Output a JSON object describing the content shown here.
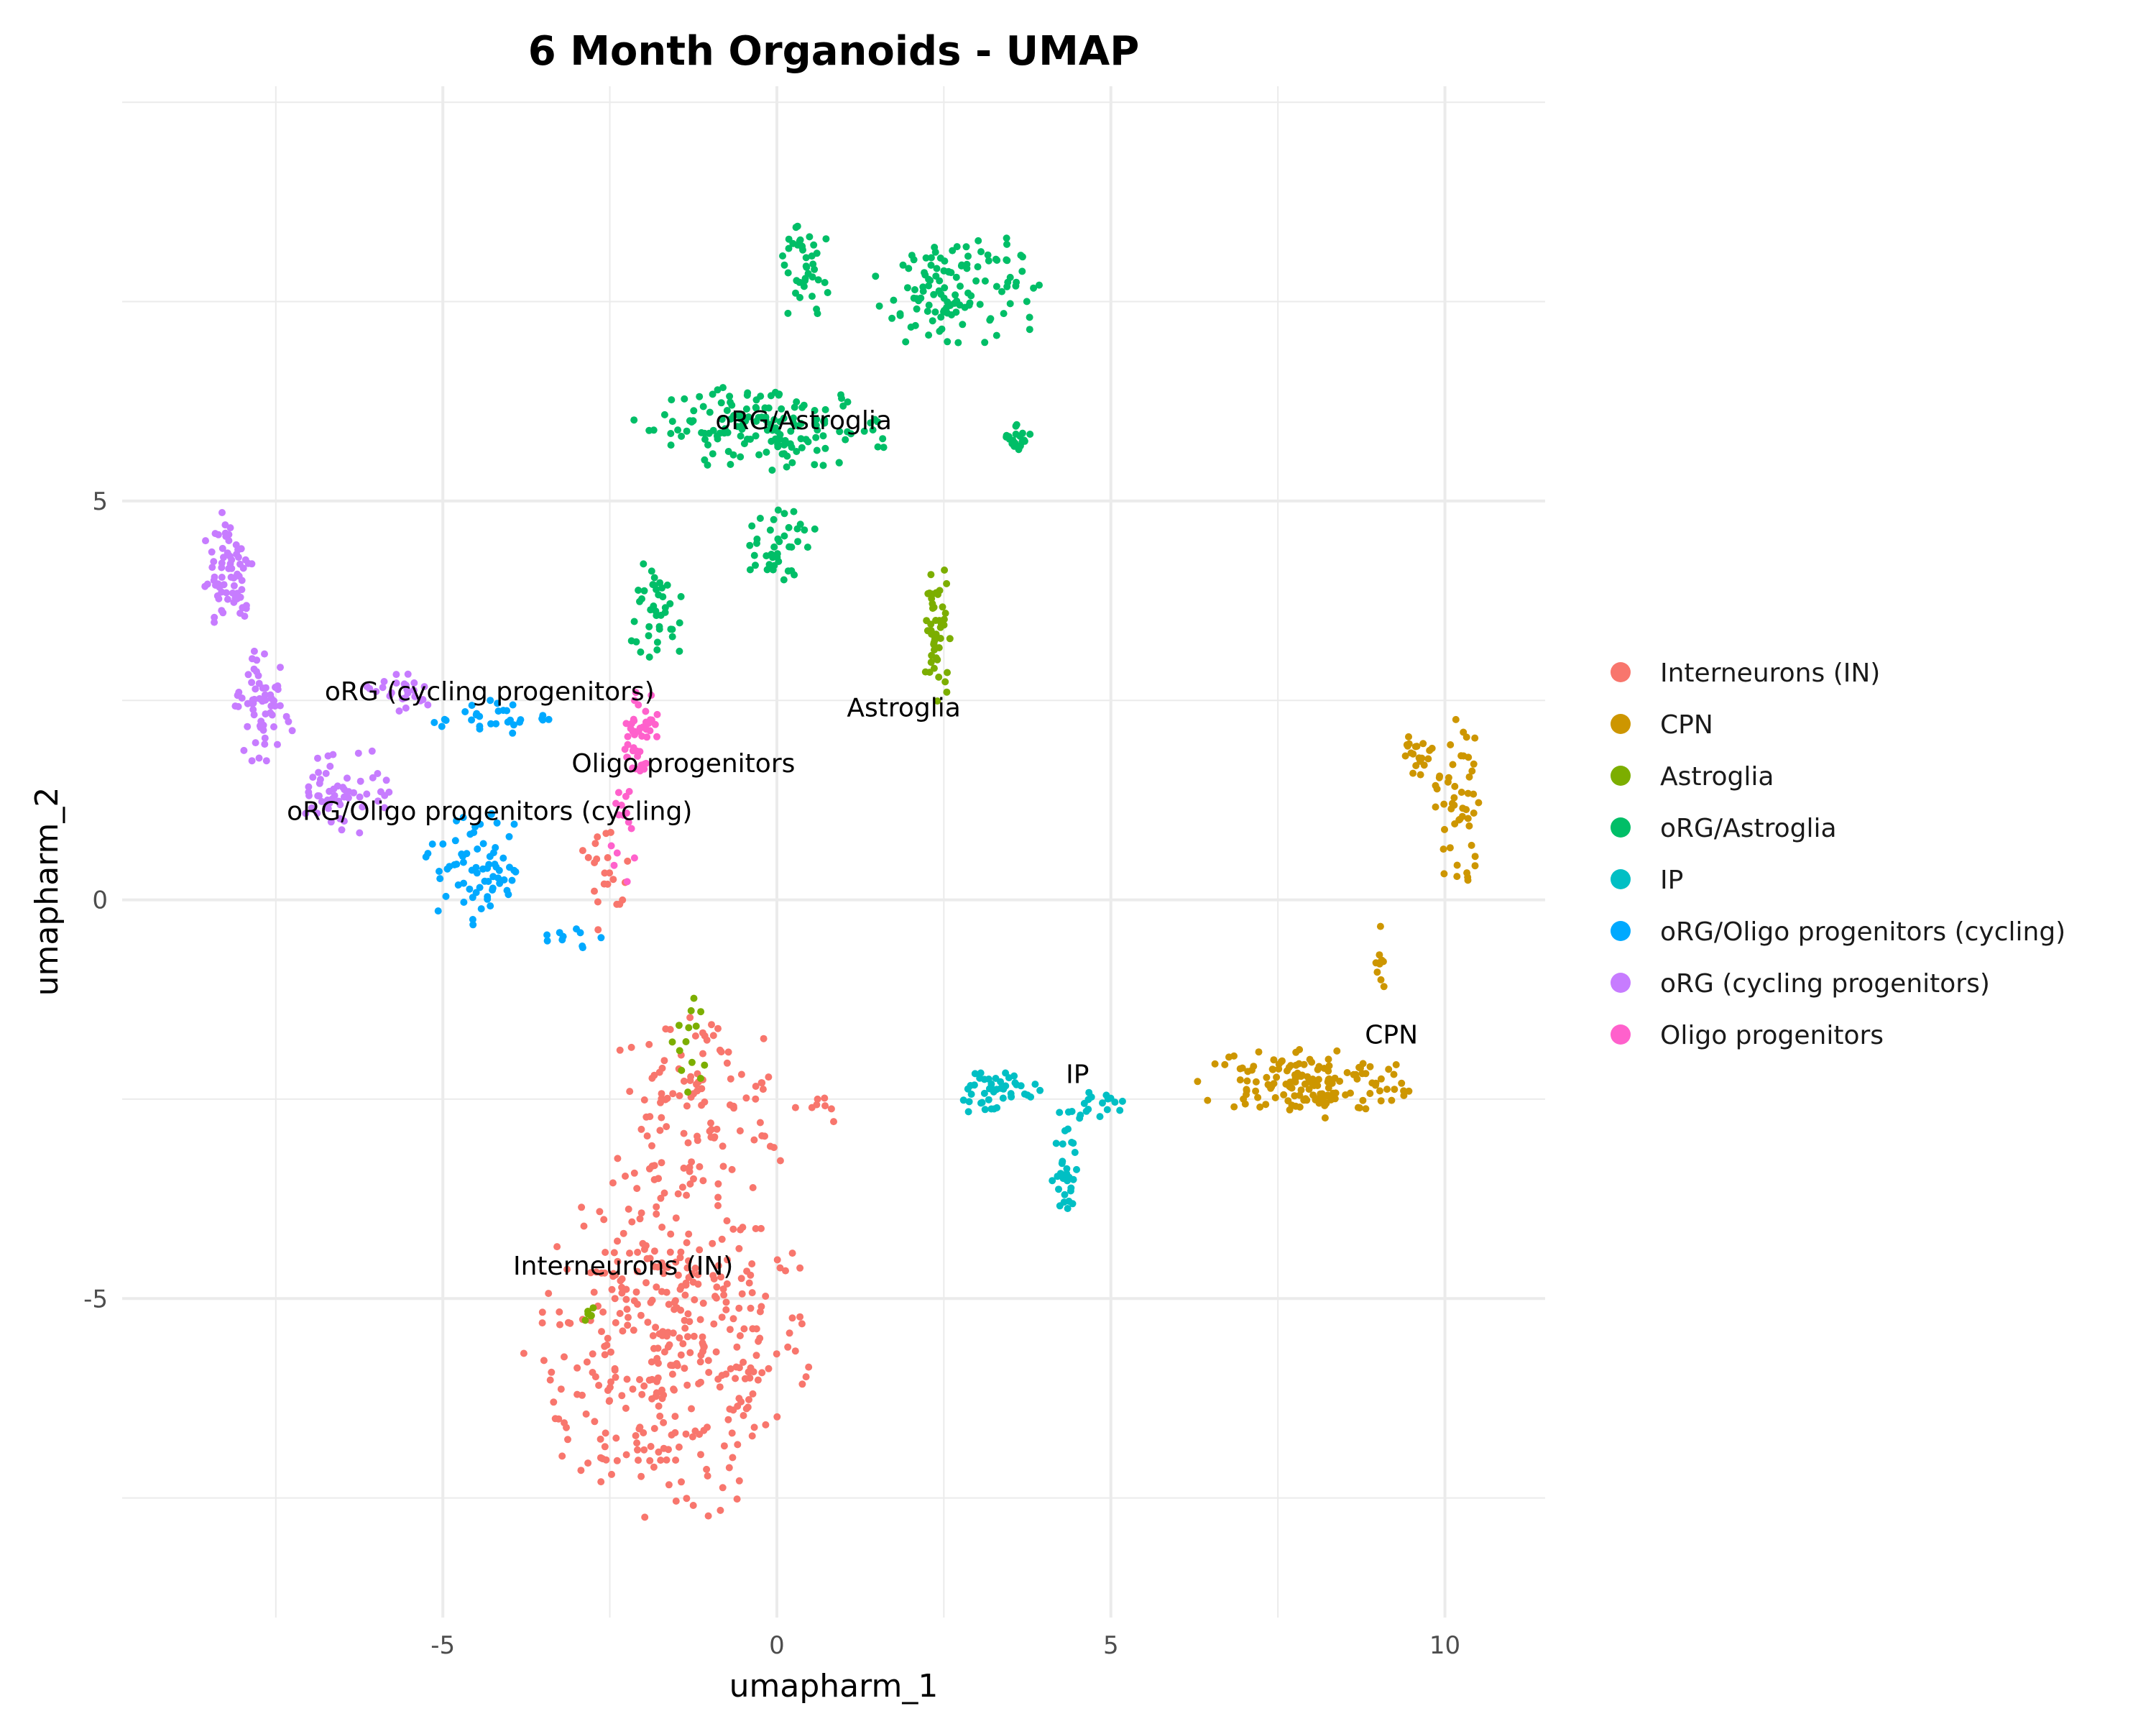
{
  "chart_data": {
    "type": "scatter",
    "title": "6 Month Organoids - UMAP",
    "xlabel": "umapharm_1",
    "ylabel": "umapharm_2",
    "xlim": [
      -9.8,
      11.5
    ],
    "ylim": [
      -9.0,
      10.2
    ],
    "xticks": [
      -5,
      0,
      5,
      10
    ],
    "yticks": [
      -5,
      0,
      5
    ],
    "xtick_labels": [
      "-5",
      "0",
      "5",
      "10"
    ],
    "ytick_labels": [
      "-5",
      "0",
      "5"
    ],
    "grid": true,
    "legend_position": "right",
    "series": [
      {
        "name": "Interneurons (IN)",
        "color": "#F8766D",
        "cluster_label": "Interneurons (IN)",
        "label_at": [
          -2.3,
          -4.7
        ],
        "point_count": 520,
        "blobs": [
          {
            "cx": -1.6,
            "cy": -5.6,
            "rx": 2.2,
            "ry": 2.3,
            "n": 380
          },
          {
            "cx": -1.2,
            "cy": -2.6,
            "rx": 1.5,
            "ry": 1.3,
            "n": 110
          },
          {
            "cx": -2.6,
            "cy": 0.1,
            "rx": 0.45,
            "ry": 0.9,
            "n": 22
          },
          {
            "cx": 0.6,
            "cy": -2.6,
            "rx": 0.7,
            "ry": 0.2,
            "n": 8
          }
        ]
      },
      {
        "name": "CPN",
        "color": "#CD9600",
        "cluster_label": "CPN",
        "label_at": [
          9.2,
          -1.8
        ],
        "point_count": 230,
        "blobs": [
          {
            "cx": 7.9,
            "cy": -2.3,
            "rx": 1.7,
            "ry": 0.45,
            "n": 150
          },
          {
            "cx": 10.2,
            "cy": 1.2,
            "rx": 0.35,
            "ry": 1.2,
            "n": 50
          },
          {
            "cx": 9.0,
            "cy": -0.7,
            "rx": 0.15,
            "ry": 0.7,
            "n": 10
          },
          {
            "cx": 9.6,
            "cy": 1.8,
            "rx": 0.3,
            "ry": 0.3,
            "n": 20
          }
        ]
      },
      {
        "name": "Astroglia",
        "color": "#7CAE00",
        "cluster_label": "Astroglia",
        "label_at": [
          1.9,
          2.3
        ],
        "point_count": 70,
        "blobs": [
          {
            "cx": 2.4,
            "cy": 3.3,
            "rx": 0.22,
            "ry": 1.0,
            "n": 50
          },
          {
            "cx": -1.3,
            "cy": -1.8,
            "rx": 0.3,
            "ry": 0.8,
            "n": 14
          },
          {
            "cx": -2.8,
            "cy": -5.2,
            "rx": 0.1,
            "ry": 0.1,
            "n": 6
          }
        ]
      },
      {
        "name": "oRG/Astroglia",
        "color": "#00BE67",
        "cluster_label": "oRG/Astroglia",
        "label_at": [
          0.4,
          5.9
        ],
        "point_count": 420,
        "blobs": [
          {
            "cx": -0.2,
            "cy": 5.9,
            "rx": 2.0,
            "ry": 0.55,
            "n": 160
          },
          {
            "cx": 2.7,
            "cy": 7.6,
            "rx": 1.3,
            "ry": 0.85,
            "n": 120
          },
          {
            "cx": 0.4,
            "cy": 7.9,
            "rx": 0.4,
            "ry": 0.8,
            "n": 40
          },
          {
            "cx": -1.8,
            "cy": 3.6,
            "rx": 0.5,
            "ry": 0.8,
            "n": 40
          },
          {
            "cx": 0.0,
            "cy": 4.5,
            "rx": 0.6,
            "ry": 0.5,
            "n": 40
          },
          {
            "cx": 3.6,
            "cy": 5.8,
            "rx": 0.2,
            "ry": 0.2,
            "n": 20
          }
        ]
      },
      {
        "name": "IP",
        "color": "#00BFC4",
        "cluster_label": "IP",
        "label_at": [
          4.5,
          -2.3
        ],
        "point_count": 95,
        "blobs": [
          {
            "cx": 3.2,
            "cy": -2.4,
            "rx": 0.8,
            "ry": 0.3,
            "n": 45
          },
          {
            "cx": 4.3,
            "cy": -3.5,
            "rx": 0.2,
            "ry": 0.7,
            "n": 30
          },
          {
            "cx": 4.7,
            "cy": -2.6,
            "rx": 0.5,
            "ry": 0.25,
            "n": 20
          }
        ]
      },
      {
        "name": "oRG/Oligo progenitors (cycling)",
        "color": "#00A9FF",
        "cluster_label": "oRG/Oligo progenitors (cycling)",
        "label_at": [
          -4.3,
          1.0
        ],
        "point_count": 110,
        "blobs": [
          {
            "cx": -4.5,
            "cy": 0.4,
            "rx": 0.8,
            "ry": 0.8,
            "n": 70
          },
          {
            "cx": -4.3,
            "cy": 2.3,
            "rx": 0.9,
            "ry": 0.25,
            "n": 30
          },
          {
            "cx": -3.0,
            "cy": -0.5,
            "rx": 0.5,
            "ry": 0.2,
            "n": 10
          }
        ]
      },
      {
        "name": "oRG (cycling progenitors)",
        "color": "#C77CFF",
        "cluster_label": "oRG (cycling progenitors)",
        "label_at": [
          -4.3,
          2.5
        ],
        "point_count": 210,
        "blobs": [
          {
            "cx": -8.2,
            "cy": 4.1,
            "rx": 0.4,
            "ry": 0.9,
            "n": 70
          },
          {
            "cx": -7.7,
            "cy": 2.4,
            "rx": 0.5,
            "ry": 0.8,
            "n": 60
          },
          {
            "cx": -6.5,
            "cy": 1.4,
            "rx": 0.8,
            "ry": 0.6,
            "n": 55
          },
          {
            "cx": -5.7,
            "cy": 2.6,
            "rx": 0.6,
            "ry": 0.3,
            "n": 25
          }
        ]
      },
      {
        "name": "Oligo progenitors",
        "color": "#FF61CC",
        "cluster_label": "Oligo progenitors",
        "label_at": [
          -1.4,
          1.6
        ],
        "point_count": 60,
        "blobs": [
          {
            "cx": -2.1,
            "cy": 2.1,
            "rx": 0.35,
            "ry": 0.6,
            "n": 45
          },
          {
            "cx": -2.3,
            "cy": 0.8,
            "rx": 0.3,
            "ry": 0.6,
            "n": 15
          }
        ]
      }
    ]
  }
}
